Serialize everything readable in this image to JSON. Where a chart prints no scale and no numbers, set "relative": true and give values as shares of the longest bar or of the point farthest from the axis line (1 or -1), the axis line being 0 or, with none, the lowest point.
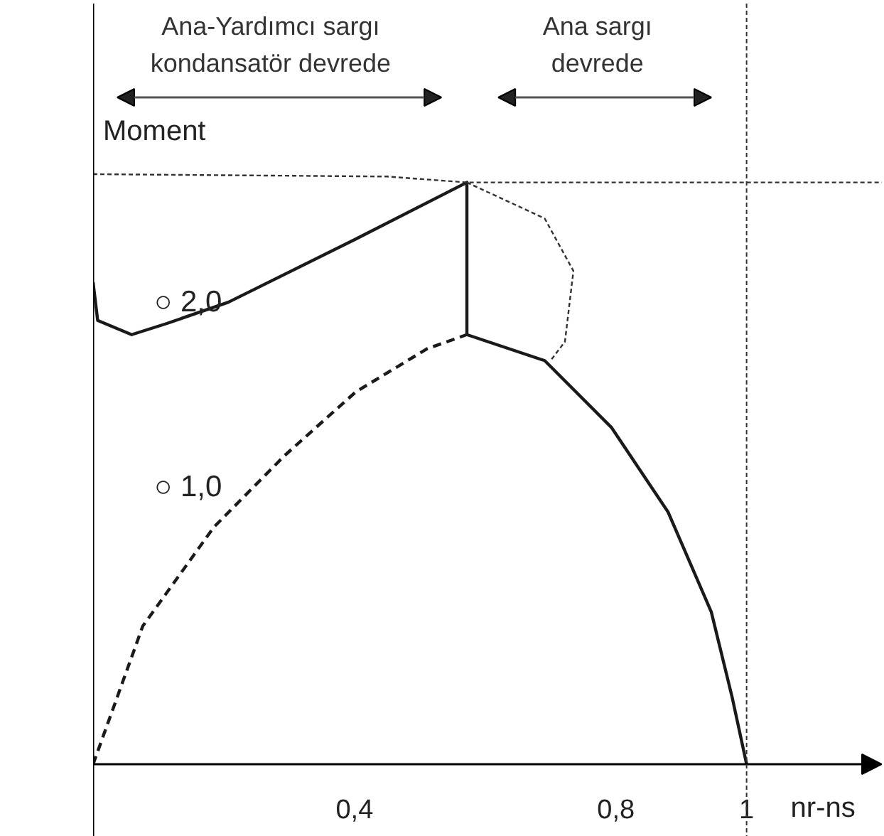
{
  "chart_data": {
    "type": "line",
    "relative": true,
    "xlabel": "nr-ns",
    "ylabel": "Moment",
    "xlim": [
      0,
      1.207
    ],
    "xticks": [
      {
        "value": 0.4,
        "label": "0,4"
      },
      {
        "value": 0.8,
        "label": "0,8"
      },
      {
        "value": 1,
        "label": "1"
      }
    ],
    "series": [
      {
        "color": "#1a1a1a",
        "line_style": "solid",
        "x": [
          0,
          0.007,
          0.059,
          0.113,
          0.207,
          0.402,
          0.572,
          0.572
        ],
        "values": [
          0.817,
          0.752,
          0.728,
          0.747,
          0.783,
          0.89,
          0.986,
          0.728
        ]
      },
      {
        "color": "#1a1a1a",
        "line_style": "solid",
        "x": [
          0.572,
          0.691,
          0.793,
          0.88,
          0.946,
          0.978,
          1.0
        ],
        "values": [
          0.728,
          0.684,
          0.571,
          0.427,
          0.258,
          0.113,
          0
        ]
      },
      {
        "color": "#1a1a1a",
        "line_style": "dashed",
        "x": [
          0,
          0.076,
          0.185,
          0.293,
          0.402,
          0.511,
          0.572
        ],
        "values": [
          0,
          0.234,
          0.402,
          0.523,
          0.631,
          0.704,
          0.728
        ]
      },
      {
        "color": "#333333",
        "line_style": "dotted",
        "x": [
          0.572,
          0.691,
          0.735,
          0.722,
          0.7
        ],
        "values": [
          0.986,
          0.925,
          0.836,
          0.716,
          0.684
        ]
      },
      {
        "color": "#333333",
        "line_style": "dotted",
        "x": [
          0,
          0.45,
          0.572,
          1.207
        ],
        "values": [
          1.0,
          0.996,
          0.986,
          0.986
        ]
      }
    ],
    "ref_lines": [
      {
        "axis": "x",
        "value": 1,
        "line_style": "dotted",
        "color": "#333333"
      }
    ],
    "annotations": [
      "Ana-Yardımcı sargı\nkondansatör devrede",
      "Ana sargı\ndevrede",
      "○ 2,0",
      "○ 1,0"
    ],
    "grid": false
  }
}
